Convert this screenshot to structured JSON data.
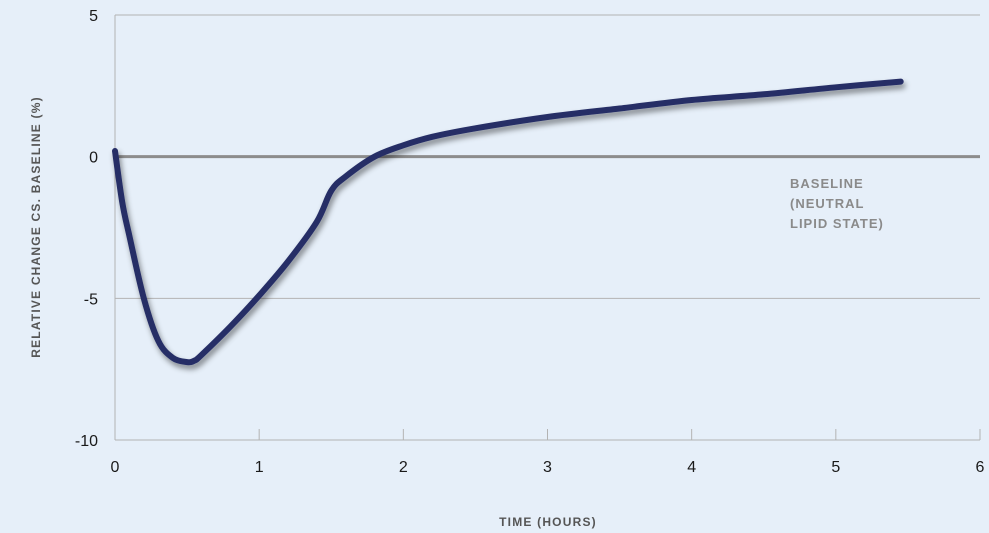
{
  "chart_data": {
    "type": "line",
    "xlabel": "TIME (HOURS)",
    "ylabel": "RELATIVE CHANGE CS. BASELINE (%)",
    "xlim": [
      0,
      6
    ],
    "ylim": [
      -10,
      5
    ],
    "x_ticks": [
      0,
      1,
      2,
      3,
      4,
      5,
      6
    ],
    "y_ticks": [
      5,
      0,
      -5,
      -10
    ],
    "grid": "horizontal",
    "baseline": {
      "value": 0,
      "label_lines": [
        "BASELINE",
        "(NEUTRAL",
        "LIPID STATE)"
      ]
    },
    "series": [
      {
        "x": [
          0,
          0.05,
          0.1,
          0.2,
          0.3,
          0.4,
          0.5,
          0.55,
          0.6,
          0.8,
          1.0,
          1.2,
          1.4,
          1.5,
          1.6,
          1.8,
          2.0,
          2.2,
          2.5,
          3.0,
          3.5,
          4.0,
          4.5,
          5.0,
          5.45
        ],
        "y": [
          0.2,
          -1.6,
          -2.8,
          -5.0,
          -6.5,
          -7.1,
          -7.25,
          -7.2,
          -7.0,
          -6.0,
          -4.9,
          -3.7,
          -2.3,
          -1.2,
          -0.7,
          0.0,
          0.4,
          0.7,
          1.0,
          1.4,
          1.7,
          2.0,
          2.2,
          2.45,
          2.65
        ],
        "color": "#252e66"
      }
    ],
    "colors": {
      "background": "#e6eff9",
      "line": "#252e66",
      "baseline": "#8c8c8c",
      "grid": "#b3b3b3"
    }
  }
}
